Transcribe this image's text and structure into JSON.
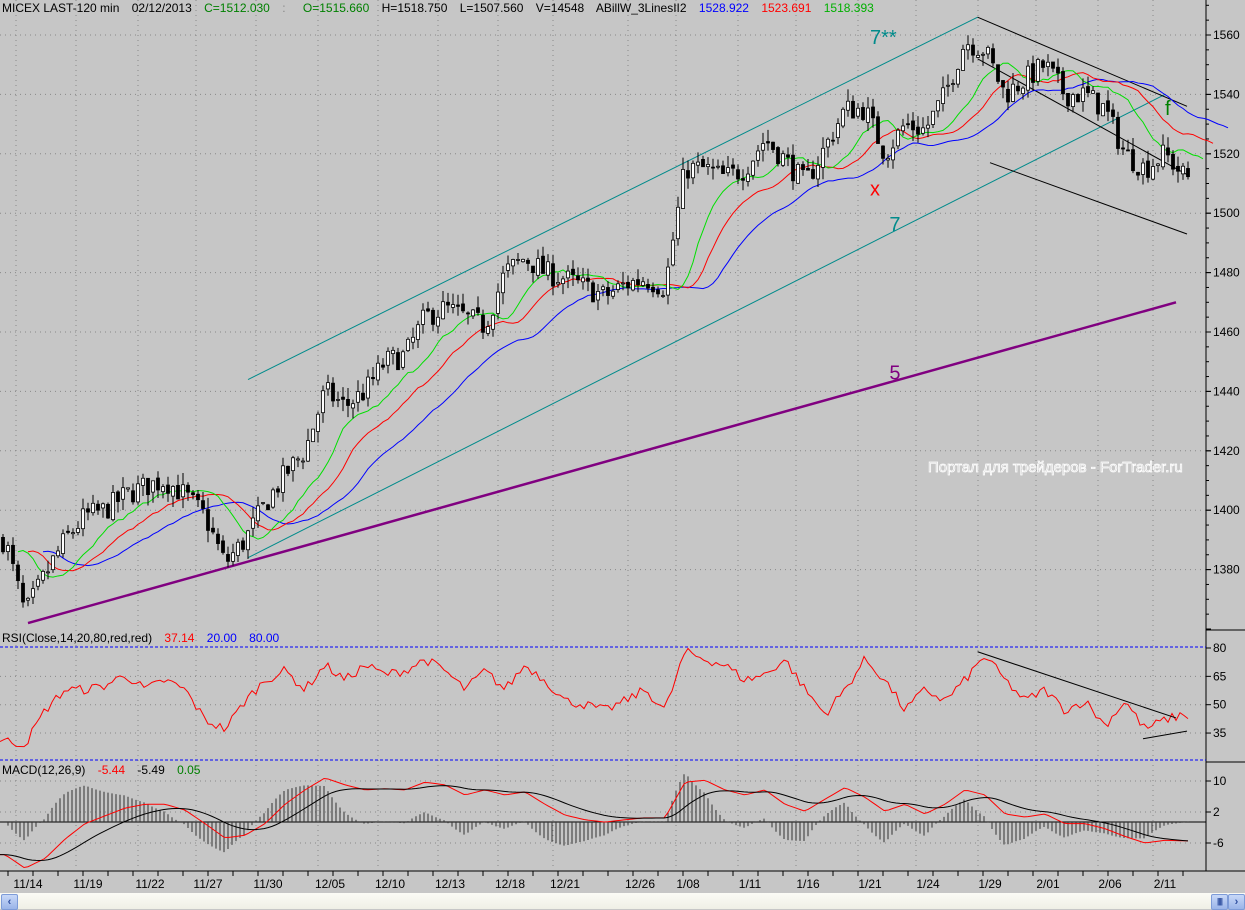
{
  "header": {
    "symbol": "MICEX LAST-120 min",
    "date": "02/12/2013",
    "close": "C=1512.030",
    "open": "O=1515.660",
    "high": "H=1518.750",
    "low": "L=1507.560",
    "volume": "V=14548",
    "indicator": "ABillW_3LinesII2",
    "line_blue": "1528.922",
    "line_red": "1523.691",
    "line_green": "1518.393"
  },
  "rsi_header": {
    "label": "RSI(Close,14,20,80,red,red)",
    "value": "37.14",
    "low": "20.00",
    "high": "80.00"
  },
  "macd_header": {
    "label": "MACD(12,26,9)",
    "macd": "-5.44",
    "signal": "-5.49",
    "hist": "0.05"
  },
  "watermark": "Портал для трейдеров - ForTrader.ru",
  "scrollbar": {
    "left_icon": "chevron-left-icon",
    "grip_icon": "grip-icon",
    "right_icon": "chevron-right-icon"
  },
  "colors": {
    "background": "#c6c6c6",
    "blue": "#0000ff",
    "red": "#ff0000",
    "green": "#00e000",
    "teal": "#008b8b",
    "purple": "#800080"
  },
  "chart_data": [
    {
      "type": "candlestick",
      "title": "MICEX LAST-120 min",
      "x_tick_labels": [
        "11/14",
        "11/19",
        "11/22",
        "11/27",
        "11/30",
        "12/05",
        "12/10",
        "12/13",
        "12/18",
        "12/21",
        "12/26",
        "1/08",
        "1/11",
        "1/16",
        "1/21",
        "1/24",
        "1/29",
        "2/01",
        "2/06",
        "2/11"
      ],
      "y_ticks": [
        1380,
        1400,
        1420,
        1440,
        1460,
        1480,
        1500,
        1520,
        1540,
        1560
      ],
      "ylim": [
        1355,
        1572
      ],
      "grid": true,
      "close_series_sampled": [
        1390,
        1365,
        1378,
        1390,
        1398,
        1400,
        1405,
        1408,
        1410,
        1405,
        1398,
        1382,
        1390,
        1402,
        1412,
        1420,
        1440,
        1435,
        1440,
        1450,
        1452,
        1465,
        1468,
        1465,
        1462,
        1480,
        1485,
        1480,
        1478,
        1475,
        1472,
        1476,
        1478,
        1475,
        1515,
        1515,
        1512,
        1515,
        1525,
        1518,
        1510,
        1522,
        1535,
        1535,
        1520,
        1530,
        1528,
        1540,
        1558,
        1555,
        1540,
        1545,
        1550,
        1540,
        1540,
        1535,
        1520,
        1515,
        1520,
        1512
      ],
      "moving_averages": [
        {
          "color": "#0000ff",
          "last": 1528.922
        },
        {
          "color": "#ff0000",
          "last": 1523.691
        },
        {
          "color": "#00e000",
          "last": 1518.393
        }
      ],
      "trendlines": [
        {
          "label": "5",
          "color": "#800080",
          "from": [
            "11/14",
            1362
          ],
          "to": [
            "2/12",
            1470
          ]
        },
        {
          "label": "7**",
          "color": "#008b8b",
          "from": [
            "11/29",
            1444
          ],
          "to": [
            "1/28",
            1566
          ]
        },
        {
          "label": "7",
          "color": "#008b8b",
          "from": [
            "11/29",
            1384
          ],
          "to": [
            "2/11",
            1540
          ]
        },
        {
          "label": "",
          "color": "#000000",
          "from": [
            "1/28",
            1566
          ],
          "to": [
            "2/13",
            1536
          ]
        },
        {
          "label": "",
          "color": "#000000",
          "from": [
            "1/28",
            1552
          ],
          "to": [
            "2/13",
            1513
          ]
        },
        {
          "label": "",
          "color": "#000000",
          "from": [
            "1/29",
            1517
          ],
          "to": [
            "2/13",
            1493
          ]
        }
      ],
      "annotations": [
        {
          "text": "7**",
          "color": "#008b8b",
          "at": [
            "1/21",
            1557
          ]
        },
        {
          "text": "x",
          "color": "#ff0000",
          "at": [
            "1/21",
            1506
          ]
        },
        {
          "text": "7",
          "color": "#008b8b",
          "at": [
            "1/22",
            1494
          ]
        },
        {
          "text": "5",
          "color": "#800080",
          "at": [
            "1/22",
            1444
          ]
        },
        {
          "text": "f",
          "color": "#008000",
          "at": [
            "2/11",
            1533
          ]
        }
      ]
    },
    {
      "type": "line",
      "title": "RSI(Close,14,20,80,red,red)",
      "y_ticks": [
        35,
        50,
        65,
        80
      ],
      "ylim": [
        20,
        80
      ],
      "levels": [
        20,
        80
      ],
      "series": [
        {
          "color": "#ff0000",
          "values_sampled": [
            31,
            29,
            47,
            58,
            58,
            60,
            66,
            58,
            63,
            58,
            42,
            37,
            52,
            63,
            68,
            58,
            71,
            63,
            71,
            66,
            68,
            74,
            68,
            58,
            68,
            58,
            71,
            63,
            52,
            50,
            47,
            52,
            58,
            47,
            78,
            74,
            71,
            63,
            66,
            74,
            58,
            45,
            58,
            74,
            63,
            47,
            58,
            52,
            63,
            76,
            63,
            52,
            58,
            47,
            52,
            39,
            52,
            37,
            42,
            45,
            39
          ]
        }
      ],
      "last": 37.14,
      "trendlines": [
        {
          "from": [
            "1/28",
            78
          ],
          "to": [
            "2/12",
            43
          ]
        },
        {
          "from": [
            "2/09",
            32
          ],
          "to": [
            "2/13",
            36
          ]
        }
      ]
    },
    {
      "type": "line",
      "title": "MACD(12,26,9)",
      "y_ticks": [
        -6,
        2,
        10
      ],
      "ylim": [
        -13,
        15
      ],
      "series": [
        {
          "name": "MACD",
          "color": "#ff0000",
          "values_sampled": [
            -9,
            -12.5,
            -10,
            -5,
            -1,
            1,
            3,
            4,
            4,
            2.5,
            -1,
            -4.7,
            -4,
            -1,
            4,
            7.7,
            10.8,
            9,
            7.7,
            8,
            7.7,
            9.7,
            9,
            6.4,
            7.7,
            6.4,
            7.2,
            4,
            1.2,
            0,
            -0.6,
            0,
            0.5,
            0.5,
            9.7,
            10.2,
            7.7,
            6.4,
            7.7,
            4,
            2.2,
            5.3,
            8.3,
            5.8,
            2.2,
            4,
            1.5,
            4,
            7.7,
            6.4,
            1.5,
            0.7,
            1.5,
            -1,
            -1,
            -2.3,
            -4.3,
            -6,
            -5.3,
            -5.44
          ]
        },
        {
          "name": "Signal",
          "color": "#000000",
          "last": -5.49
        },
        {
          "name": "Histogram",
          "color": "#000000",
          "last": 0.05
        }
      ]
    }
  ]
}
